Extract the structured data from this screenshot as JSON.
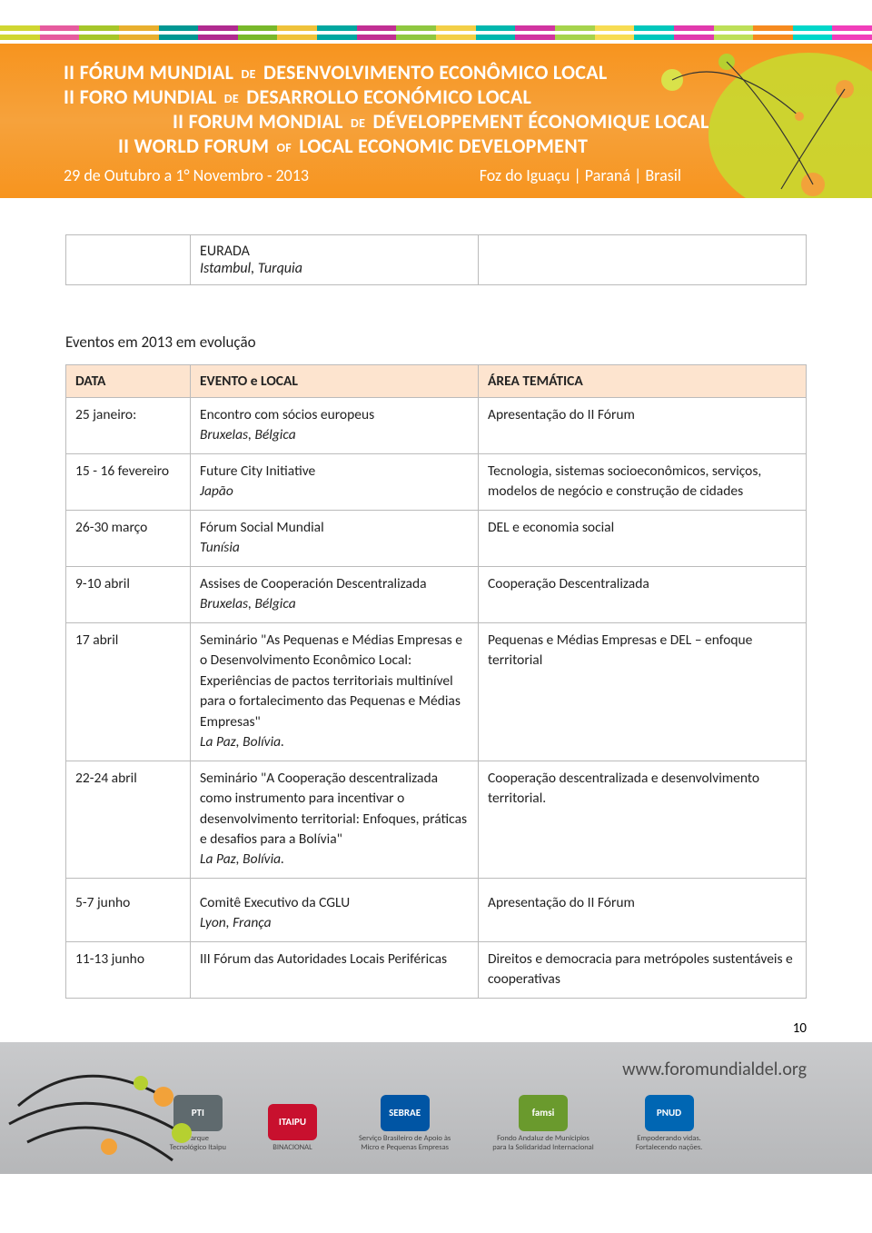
{
  "header": {
    "title_pt": "II FÓRUM MUNDIAL DE DESENVOLVIMENTO ECONÔMICO LOCAL",
    "title_es": "II FORO MUNDIAL DE DESARROLLO ECONÓMICO LOCAL",
    "title_fr": "II FORUM MONDIAL DE DÉVELOPPEMENT ÉCONOMIQUE LOCAL",
    "title_en": "II WORLD FORUM OF LOCAL ECONOMIC DEVELOPMENT",
    "dates": "29 de Outubro a 1° Novembro - 2013",
    "location": "Foz do Iguaçu | Paraná | Brasil",
    "stripe_colors": [
      "#d0d631",
      "#e65b9e",
      "#a6c62a",
      "#e8af2e",
      "#009793",
      "#b02a8f",
      "#78b82a",
      "#efc23a",
      "#00a7a0",
      "#c12f93",
      "#8fc740",
      "#f3cf46",
      "#00b7ae",
      "#d134a0",
      "#a6d34c",
      "#f7dc52",
      "#00c7bc",
      "#e139ad",
      "#bddf58",
      "#f68a1f",
      "#00d7ca",
      "#f13eba"
    ]
  },
  "single_cell": "EURADA\nIstambul, Turquia",
  "section_title": "Eventos em 2013 em evolução",
  "table": {
    "headers": [
      "DATA",
      "EVENTO e LOCAL",
      "ÁREA TEMÁTICA"
    ],
    "header_bg": "#fde4cf",
    "rows": [
      {
        "c1": "25 janeiro:",
        "c2": "Encontro com sócios europeus",
        "c2i": "Bruxelas, Bélgica",
        "c3": "Apresentação do II Fórum"
      },
      {
        "c1": "15 - 16 fevereiro",
        "c2": "Future City Initiative",
        "c2i": "Japão",
        "c3": "Tecnologia, sistemas socioeconômicos, serviços, modelos de negócio e construção de cidades"
      },
      {
        "c1": "26-30 março",
        "c2": "Fórum Social Mundial",
        "c2i": "Tunísia",
        "c3": "DEL e economia social"
      },
      {
        "c1": "9-10 abril",
        "c2": "Assises de Cooperación Descentralizada",
        "c2i": "Bruxelas, Bélgica",
        "c3": "Cooperação Descentralizada"
      },
      {
        "c1": "17 abril",
        "c2": "Seminário \"As Pequenas e Médias Empresas e o Desenvolvimento Econômico Local: Experiências de pactos territoriais multinível para o fortalecimento das Pequenas e Médias Empresas\"",
        "c2i": "La Paz, Bolívia.",
        "c3": "Pequenas e Médias Empresas e DEL – enfoque territorial"
      },
      {
        "c1": "22-24 abril",
        "c2": "Seminário \"A Cooperação descentralizada como instrumento para incentivar o desenvolvimento territorial: Enfoques, práticas e desafios para a Bolívia\"",
        "c2i": "La Paz, Bolívia.",
        "c3": "Cooperação descentralizada e desenvolvimento territorial."
      },
      {
        "c1": "5-7 junho",
        "c2": "Comitê Executivo da CGLU",
        "c2i": "Lyon, França",
        "c3": "Apresentação do II Fórum"
      },
      {
        "c1": "11-13 junho",
        "c2": "III Fórum das Autoridades Locais Periféricas",
        "c2i": "",
        "c3": "Direitos e democracia para metrópoles sustentáveis e cooperativas"
      }
    ],
    "gap_before_row_index": 6
  },
  "page_number": "10",
  "footer": {
    "url": "www.foromundialdel.org",
    "logos": [
      {
        "name": "PTI",
        "sub": "Parque\nTecnológico Itaipu",
        "color": "#5f6a6e"
      },
      {
        "name": "ITAIPU",
        "sub": "BINACIONAL",
        "color": "#c8102e"
      },
      {
        "name": "SEBRAE",
        "sub": "Serviço Brasileiro de Apoio às\nMicro e Pequenas Empresas",
        "color": "#0055a4"
      },
      {
        "name": "famsi",
        "sub": "Fondo Andaluz de Municipios\npara la Solidaridad Internacional",
        "color": "#6a9a2d"
      },
      {
        "name": "PNUD",
        "sub": "Empoderando vidas.\nFortalecendo nações.",
        "color": "#0066b3"
      }
    ]
  }
}
